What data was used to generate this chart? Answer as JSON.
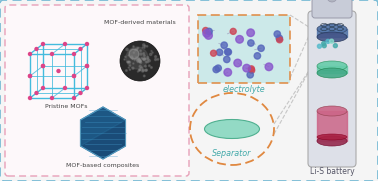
{
  "background_color": "#f5f5f5",
  "outer_border_color": "#7bbcd5",
  "left_panel_border_color": "#e8a0b8",
  "title_mof_derived": "MOF-derived materials",
  "title_pristine": "Pristine MOFs",
  "title_composite": "MOF-based composites",
  "label_electrolyte": "electrolyte",
  "label_separator": "Separator",
  "label_battery": "Li-S battery",
  "electrolyte_box_color": "#c5e8e8",
  "electrolyte_border_color": "#e08840",
  "separator_border_color": "#e08840",
  "separator_ellipse_color": "#88d8c0",
  "mof_frame_color": "#44bbdd",
  "mof_node_color": "#dd4488",
  "text_color": "#444444",
  "electrolyte_text_color": "#44aaaa",
  "separator_text_color": "#44aaaa",
  "battery_text_color": "#555566"
}
